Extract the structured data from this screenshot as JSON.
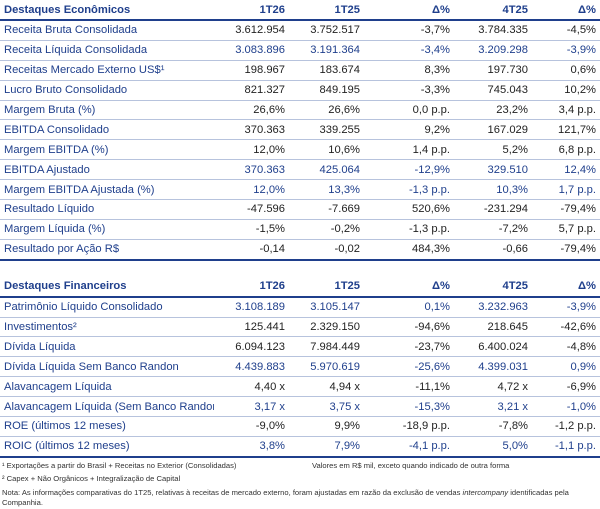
{
  "table1": {
    "headers": [
      "Destaques Econômicos",
      "1T26",
      "1T25",
      "Δ%",
      "4T25",
      "Δ%"
    ],
    "rows": [
      {
        "label": "Receita Bruta Consolidada",
        "cells": [
          "3.612.954",
          "3.752.517",
          "-3,7%",
          "3.784.335",
          "-4,5%"
        ],
        "blue": false
      },
      {
        "label": "Receita Líquida Consolidada",
        "cells": [
          "3.083.896",
          "3.191.364",
          "-3,4%",
          "3.209.298",
          "-3,9%"
        ],
        "blue": true
      },
      {
        "label": "Receitas Mercado Externo US$¹",
        "cells": [
          "198.967",
          "183.674",
          "8,3%",
          "197.730",
          "0,6%"
        ],
        "blue": false
      },
      {
        "label": "Lucro Bruto Consolidado",
        "cells": [
          "821.327",
          "849.195",
          "-3,3%",
          "745.043",
          "10,2%"
        ],
        "blue": false
      },
      {
        "label": "Margem Bruta (%)",
        "cells": [
          "26,6%",
          "26,6%",
          "0,0 p.p.",
          "23,2%",
          "3,4 p.p."
        ],
        "blue": false
      },
      {
        "label": "EBITDA Consolidado",
        "cells": [
          "370.363",
          "339.255",
          "9,2%",
          "167.029",
          "121,7%"
        ],
        "blue": false
      },
      {
        "label": "Margem EBITDA (%)",
        "cells": [
          "12,0%",
          "10,6%",
          "1,4 p.p.",
          "5,2%",
          "6,8 p.p."
        ],
        "blue": false
      },
      {
        "label": "EBITDA Ajustado",
        "cells": [
          "370.363",
          "425.064",
          "-12,9%",
          "329.510",
          "12,4%"
        ],
        "blue": true
      },
      {
        "label": "Margem EBITDA Ajustada (%)",
        "cells": [
          "12,0%",
          "13,3%",
          "-1,3 p.p.",
          "10,3%",
          "1,7 p.p."
        ],
        "blue": true
      },
      {
        "label": "Resultado Líquido",
        "cells": [
          "-47.596",
          "-7.669",
          "520,6%",
          "-231.294",
          "-79,4%"
        ],
        "blue": false
      },
      {
        "label": "Margem Líquida (%)",
        "cells": [
          "-1,5%",
          "-0,2%",
          "-1,3 p.p.",
          "-7,2%",
          "5,7 p.p."
        ],
        "blue": false
      },
      {
        "label": "Resultado por Ação R$",
        "cells": [
          "-0,14",
          "-0,02",
          "484,3%",
          "-0,66",
          "-79,4%"
        ],
        "blue": false
      }
    ]
  },
  "table2": {
    "headers": [
      "Destaques Financeiros",
      "1T26",
      "1T25",
      "Δ%",
      "4T25",
      "Δ%"
    ],
    "rows": [
      {
        "label": "Patrimônio Líquido Consolidado",
        "cells": [
          "3.108.189",
          "3.105.147",
          "0,1%",
          "3.232.963",
          "-3,9%"
        ],
        "blue": true
      },
      {
        "label": "Investimentos²",
        "cells": [
          "125.441",
          "2.329.150",
          "-94,6%",
          "218.645",
          "-42,6%"
        ],
        "blue": false
      },
      {
        "label": "Dívida Líquida",
        "cells": [
          "6.094.123",
          "7.984.449",
          "-23,7%",
          "6.400.024",
          "-4,8%"
        ],
        "blue": false
      },
      {
        "label": "Dívida Líquida Sem Banco Randon",
        "cells": [
          "4.439.883",
          "5.970.619",
          "-25,6%",
          "4.399.031",
          "0,9%"
        ],
        "blue": true
      },
      {
        "label": "Alavancagem Líquida",
        "cells": [
          "4,40 x",
          "4,94 x",
          "-11,1%",
          "4,72 x",
          "-6,9%"
        ],
        "blue": false
      },
      {
        "label": "Alavancagem Líquida (Sem Banco Randon)",
        "cells": [
          "3,17 x",
          "3,75 x",
          "-15,3%",
          "3,21 x",
          "-1,0%"
        ],
        "blue": true
      },
      {
        "label": "ROE (últimos 12 meses)",
        "cells": [
          "-9,0%",
          "9,9%",
          "-18,9 p.p.",
          "-7,8%",
          "-1,2 p.p."
        ],
        "blue": false
      },
      {
        "label": "ROIC (últimos 12 meses)",
        "cells": [
          "3,8%",
          "7,9%",
          "-4,1 p.p.",
          "5,0%",
          "-1,1 p.p."
        ],
        "blue": true
      }
    ]
  },
  "footnotes": {
    "note1": "¹ Exportações a partir do Brasil + Receitas no Exterior (Consolidadas)",
    "values_note": "Valores em R$ mil, exceto quando indicado de outra forma",
    "note2": "² Capex + Não Orgânicos + Integralização de Capital",
    "nota": "Nota: As informações comparativas do 1T25, relativas à receitas de mercado externo, foram ajustadas em razão da exclusão de vendas intercompany identificadas pela Companhia."
  }
}
